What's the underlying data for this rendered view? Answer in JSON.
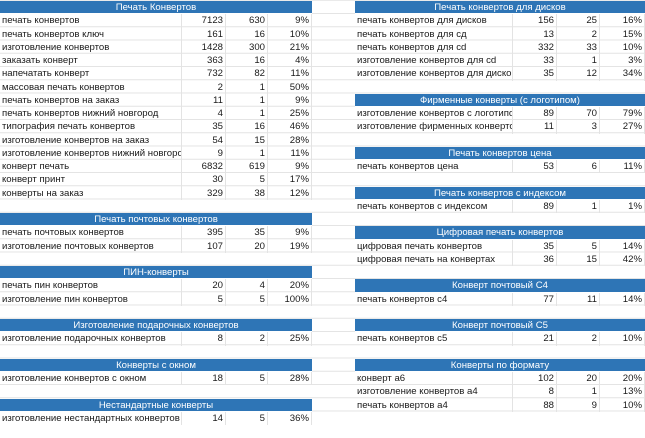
{
  "left": [
    {
      "title": "Печать Конвертов",
      "rows": [
        [
          "печать конвертов",
          "7123",
          "630",
          "9%"
        ],
        [
          "печать конвертов ключ",
          "161",
          "16",
          "10%"
        ],
        [
          "изготовление конвертов",
          "1428",
          "300",
          "21%"
        ],
        [
          "заказать конверт",
          "363",
          "16",
          "4%"
        ],
        [
          "напечатать конверт",
          "732",
          "82",
          "11%"
        ],
        [
          "массовая печать конвертов",
          "2",
          "1",
          "50%"
        ],
        [
          "печать конвертов на заказ",
          "11",
          "1",
          "9%"
        ],
        [
          "печать конвертов нижний новгород",
          "4",
          "1",
          "25%"
        ],
        [
          "типография печать конвертов",
          "35",
          "16",
          "46%"
        ],
        [
          "изготовление конвертов на заказ",
          "54",
          "15",
          "28%"
        ],
        [
          "изготовление конвертов нижний новгород",
          "9",
          "1",
          "11%"
        ],
        [
          "конверт печать",
          "6832",
          "619",
          "9%"
        ],
        [
          "конверт принт",
          "30",
          "5",
          "17%"
        ],
        [
          "конверты на заказ",
          "329",
          "38",
          "12%"
        ]
      ]
    },
    {
      "title": "Печать почтовых конвертов",
      "rows": [
        [
          "печать почтовых конвертов",
          "395",
          "35",
          "9%"
        ],
        [
          "изготовление почтовых конвертов",
          "107",
          "20",
          "19%"
        ]
      ]
    },
    {
      "title": "ПИН-конверты",
      "rows": [
        [
          "печать пин конвертов",
          "20",
          "4",
          "20%"
        ],
        [
          "изготовление пин конвертов",
          "5",
          "5",
          "100%"
        ]
      ]
    },
    {
      "title": "Изготовление подарочных конвертов",
      "rows": [
        [
          "изготовление подарочных конвертов",
          "8",
          "2",
          "25%"
        ]
      ]
    },
    {
      "title": "Конверты с окном",
      "rows": [
        [
          "изготовление конвертов с окном",
          "18",
          "5",
          "28%"
        ]
      ]
    },
    {
      "title": "Нестандартные конверты",
      "rows": [
        [
          "изготовление нестандартных конвертов",
          "14",
          "5",
          "36%"
        ]
      ]
    }
  ],
  "right": [
    {
      "title": "Печать конвертов для дисков",
      "rows": [
        [
          "печать конвертов для дисков",
          "156",
          "25",
          "16%"
        ],
        [
          "печать конвертов для сд",
          "13",
          "2",
          "15%"
        ],
        [
          "печать конвертов для cd",
          "332",
          "33",
          "10%"
        ],
        [
          "изготовление конвертов для cd",
          "33",
          "1",
          "3%"
        ],
        [
          "изготовление конвертов для дисков",
          "35",
          "12",
          "34%"
        ]
      ]
    },
    {
      "title": "Фирменные конверты (с логотипом)",
      "rows": [
        [
          "изготовление конвертов с логотипом",
          "89",
          "70",
          "79%"
        ],
        [
          "изготовление фирменных конвертов",
          "11",
          "3",
          "27%"
        ]
      ]
    },
    {
      "title": "Печать конвертов цена",
      "rows": [
        [
          "печать конвертов цена",
          "53",
          "6",
          "11%"
        ]
      ]
    },
    {
      "title": "Печать конвертов с индексом",
      "rows": [
        [
          "печать конвертов с индексом",
          "89",
          "1",
          "1%"
        ]
      ]
    },
    {
      "title": "Цифровая печать конвертов",
      "rows": [
        [
          "цифровая печать конвертов",
          "35",
          "5",
          "14%"
        ],
        [
          "цифровая печать на конвертах",
          "36",
          "15",
          "42%"
        ]
      ]
    },
    {
      "title": "Конверт почтовый С4",
      "rows": [
        [
          "печать конвертов с4",
          "77",
          "11",
          "14%"
        ]
      ]
    },
    {
      "title": "Конверт почтовый С5",
      "rows": [
        [
          "печать конвертов с5",
          "21",
          "2",
          "10%"
        ]
      ]
    },
    {
      "title": "Конверты по формату",
      "rows": [
        [
          "конверт а6",
          "102",
          "20",
          "20%"
        ],
        [
          "изготовление конвертов а4",
          "8",
          "1",
          "13%"
        ],
        [
          "печать конвертов а4",
          "88",
          "9",
          "10%"
        ]
      ]
    }
  ],
  "colors": {
    "header_bg": "#2e75b6",
    "header_text": "#ffffff",
    "grid": "#e3e3e3"
  }
}
